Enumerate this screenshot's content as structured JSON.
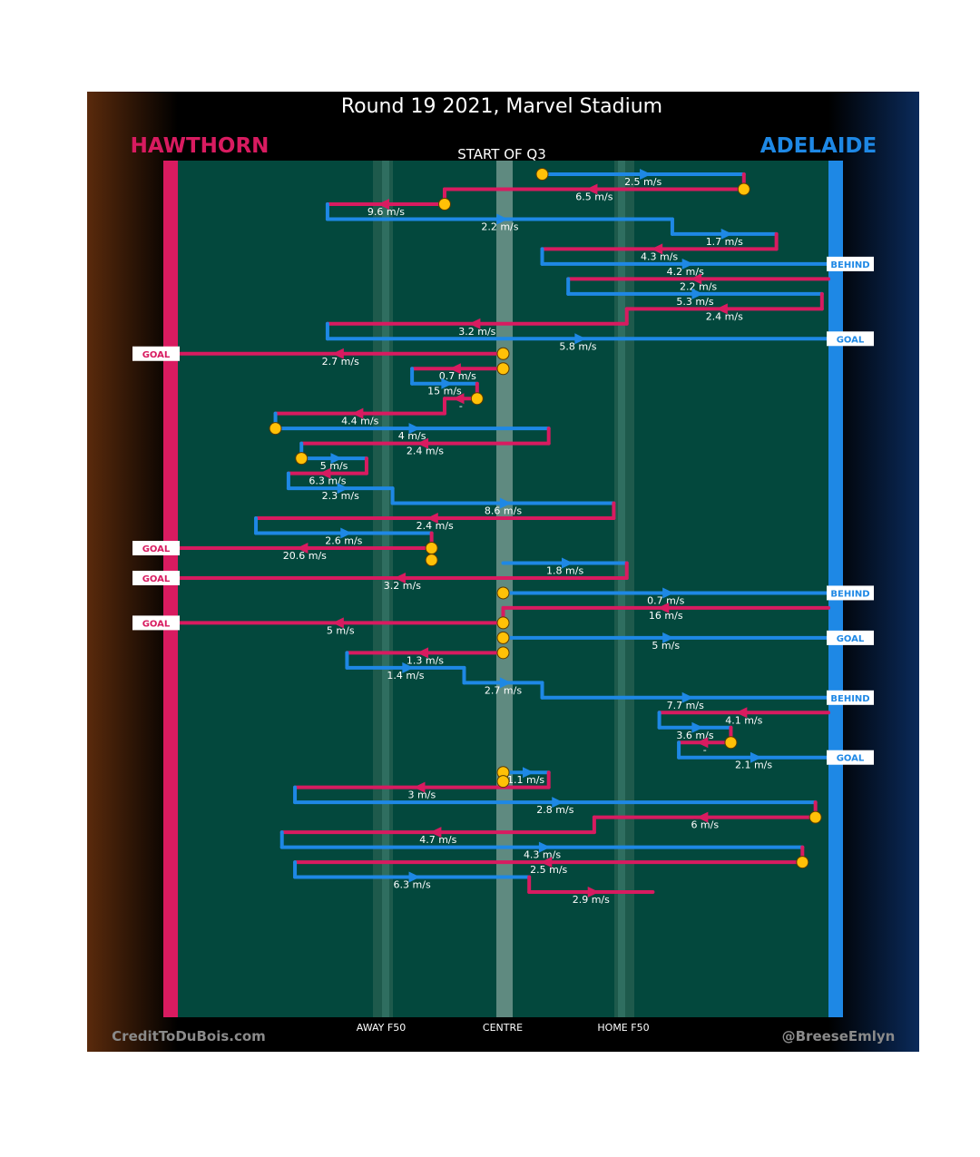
{
  "title": "Round 19 2021, Marvel Stadium",
  "subtitle": "START OF Q3",
  "teams": {
    "home": {
      "name": "HAWTHORN",
      "color": "#d81b60"
    },
    "away": {
      "name": "ADELAIDE",
      "color": "#1e88e5"
    }
  },
  "credit_left": "CreditToDuBois.com",
  "credit_right": "@BreeseEmlyn",
  "zone_labels": {
    "away_f50": "AWAY F50",
    "centre": "CENTRE",
    "home_f50": "HOME F50"
  },
  "colors": {
    "ground": "#03483d",
    "marker": "#ffc107",
    "hawthorn": "#d81b60",
    "adelaide": "#1e88e5"
  },
  "chart_data": {
    "type": "line",
    "x_axis": "ground position (0 = Hawthorn goal line, 100 = Adelaide goal line)",
    "rows": [
      {
        "team": "adelaide",
        "from": 56,
        "to": 87,
        "speed": "2.5 m/s"
      },
      {
        "team": "hawthorn",
        "from": 87,
        "to": 41,
        "speed": "6.5 m/s"
      },
      {
        "team": "hawthorn",
        "from": 41,
        "to": 23,
        "speed": "9.6 m/s"
      },
      {
        "team": "adelaide",
        "from": 23,
        "to": 76,
        "speed": "2.2 m/s"
      },
      {
        "team": "adelaide",
        "from": 76,
        "to": 92,
        "speed": "1.7 m/s"
      },
      {
        "team": "hawthorn",
        "from": 92,
        "to": 56,
        "speed": "4.3 m/s"
      },
      {
        "team": "adelaide",
        "from": 56,
        "to": 100,
        "speed": "4.2 m/s",
        "outcome": "BEHIND"
      },
      {
        "team": "hawthorn",
        "from": 100,
        "to": 60,
        "speed": "2.2 m/s"
      },
      {
        "team": "adelaide",
        "from": 60,
        "to": 99,
        "speed": "5.3 m/s"
      },
      {
        "team": "hawthorn",
        "from": 99,
        "to": 69,
        "speed": "2.4 m/s"
      },
      {
        "team": "hawthorn",
        "from": 69,
        "to": 23,
        "speed": "3.2 m/s"
      },
      {
        "team": "adelaide",
        "from": 23,
        "to": 100,
        "speed": "5.8 m/s",
        "outcome": "GOAL"
      },
      {
        "team": "hawthorn",
        "from": 50,
        "to": 0,
        "speed": "2.7 m/s",
        "outcome": "GOAL"
      },
      {
        "team": "hawthorn",
        "from": 50,
        "to": 36,
        "speed": "0.7 m/s"
      },
      {
        "team": "adelaide",
        "from": 36,
        "to": 46,
        "speed": "15 m/s"
      },
      {
        "team": "hawthorn",
        "from": 46,
        "to": 41,
        "speed": "-"
      },
      {
        "team": "hawthorn",
        "from": 41,
        "to": 15,
        "speed": "4.4 m/s"
      },
      {
        "team": "adelaide",
        "from": 15,
        "to": 57,
        "speed": "4 m/s"
      },
      {
        "team": "hawthorn",
        "from": 57,
        "to": 19,
        "speed": "2.4 m/s"
      },
      {
        "team": "adelaide",
        "from": 19,
        "to": 29,
        "speed": "5 m/s"
      },
      {
        "team": "hawthorn",
        "from": 29,
        "to": 17,
        "speed": "6.3 m/s"
      },
      {
        "team": "adelaide",
        "from": 17,
        "to": 33,
        "speed": "2.3 m/s"
      },
      {
        "team": "adelaide",
        "from": 33,
        "to": 67,
        "speed": "8.6 m/s"
      },
      {
        "team": "hawthorn",
        "from": 67,
        "to": 12,
        "speed": "2.4 m/s"
      },
      {
        "team": "adelaide",
        "from": 12,
        "to": 39,
        "speed": "2.6 m/s"
      },
      {
        "team": "hawthorn",
        "from": 39,
        "to": 0,
        "speed": "20.6 m/s",
        "outcome": "GOAL"
      },
      {
        "team": "adelaide",
        "from": 50,
        "to": 69,
        "speed": "1.8 m/s"
      },
      {
        "team": "hawthorn",
        "from": 69,
        "to": 0,
        "speed": "3.2 m/s",
        "outcome": "GOAL"
      },
      {
        "team": "adelaide",
        "from": 50,
        "to": 100,
        "speed": "0.7 m/s",
        "outcome": "BEHIND"
      },
      {
        "team": "hawthorn",
        "from": 100,
        "to": 50,
        "speed": "16 m/s"
      },
      {
        "team": "hawthorn",
        "from": 50,
        "to": 0,
        "speed": "5 m/s",
        "outcome": "GOAL"
      },
      {
        "team": "adelaide",
        "from": 50,
        "to": 100,
        "speed": "5 m/s",
        "outcome": "GOAL"
      },
      {
        "team": "hawthorn",
        "from": 50,
        "to": 26,
        "speed": "1.3 m/s"
      },
      {
        "team": "adelaide",
        "from": 26,
        "to": 44,
        "speed": "1.4 m/s"
      },
      {
        "team": "adelaide",
        "from": 44,
        "to": 56,
        "speed": "2.7 m/s"
      },
      {
        "team": "adelaide",
        "from": 56,
        "to": 100,
        "speed": "7.7 m/s",
        "outcome": "BEHIND"
      },
      {
        "team": "hawthorn",
        "from": 100,
        "to": 74,
        "speed": "4.1 m/s"
      },
      {
        "team": "adelaide",
        "from": 74,
        "to": 85,
        "speed": "3.6 m/s"
      },
      {
        "team": "hawthorn",
        "from": 85,
        "to": 77,
        "speed": "-"
      },
      {
        "team": "adelaide",
        "from": 77,
        "to": 100,
        "speed": "2.1 m/s",
        "outcome": "GOAL"
      },
      {
        "team": "adelaide",
        "from": 50,
        "to": 57,
        "speed": "1.1 m/s"
      },
      {
        "team": "hawthorn",
        "from": 57,
        "to": 18,
        "speed": "3 m/s"
      },
      {
        "team": "adelaide",
        "from": 18,
        "to": 98,
        "speed": "2.8 m/s"
      },
      {
        "team": "hawthorn",
        "from": 98,
        "to": 64,
        "speed": "6 m/s"
      },
      {
        "team": "hawthorn",
        "from": 64,
        "to": 16,
        "speed": "4.7 m/s"
      },
      {
        "team": "adelaide",
        "from": 16,
        "to": 96,
        "speed": "4.3 m/s"
      },
      {
        "team": "hawthorn",
        "from": 96,
        "to": 18,
        "speed": "2.5 m/s"
      },
      {
        "team": "adelaide",
        "from": 18,
        "to": 54,
        "speed": "6.3 m/s"
      },
      {
        "team": "hawthorn",
        "from": 54,
        "to": 73,
        "speed": "2.9 m/s"
      }
    ],
    "stoppages": [
      0,
      1,
      2,
      12,
      13,
      15,
      17,
      19,
      25,
      25.8,
      28,
      30,
      31,
      32,
      38,
      40,
      40.6,
      43,
      46
    ]
  }
}
